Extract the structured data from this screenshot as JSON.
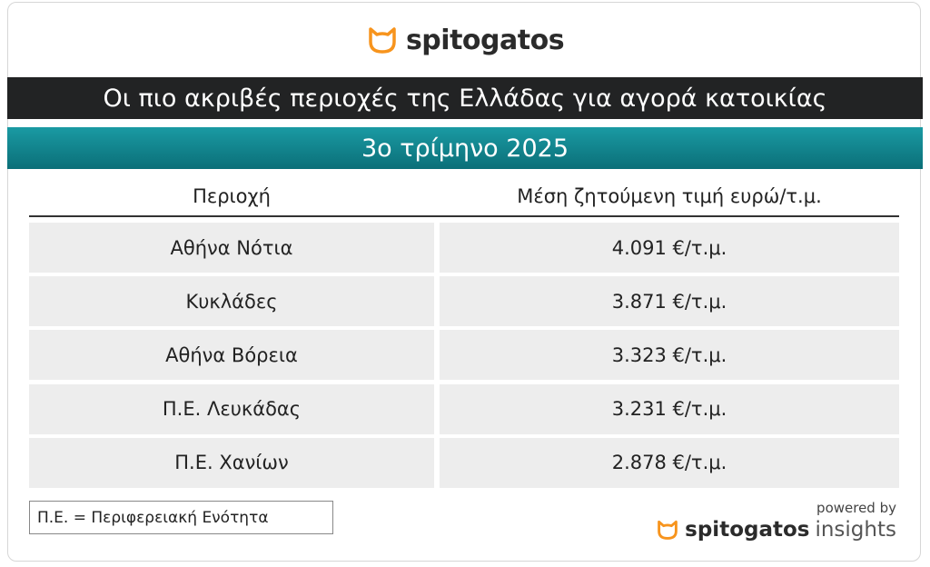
{
  "header": {
    "logo": "spitogatos",
    "title": "Οι πιο ακριβές περιοχές της Ελλάδας για αγορά κατοικίας",
    "subtitle": "3ο τρίμηνο 2025"
  },
  "table": {
    "columns": [
      "Περιοχή",
      "Μέση ζητούμενη τιμή ευρώ/τ.μ."
    ],
    "rows": [
      [
        "Αθήνα Νότια",
        "4.091 €/τ.μ."
      ],
      [
        "Κυκλάδες",
        "3.871 €/τ.μ."
      ],
      [
        "Αθήνα Βόρεια",
        "3.323 €/τ.μ."
      ],
      [
        "Π.Ε. Λευκάδας",
        "3.231 €/τ.μ."
      ],
      [
        "Π.Ε. Χανίων",
        "2.878 €/τ.μ."
      ]
    ]
  },
  "footer": {
    "note": "Π.Ε. = Περιφερειακή Ενότητα",
    "powered_by": "powered by",
    "brand": "spitogatos",
    "brand_suffix": "insights"
  }
}
